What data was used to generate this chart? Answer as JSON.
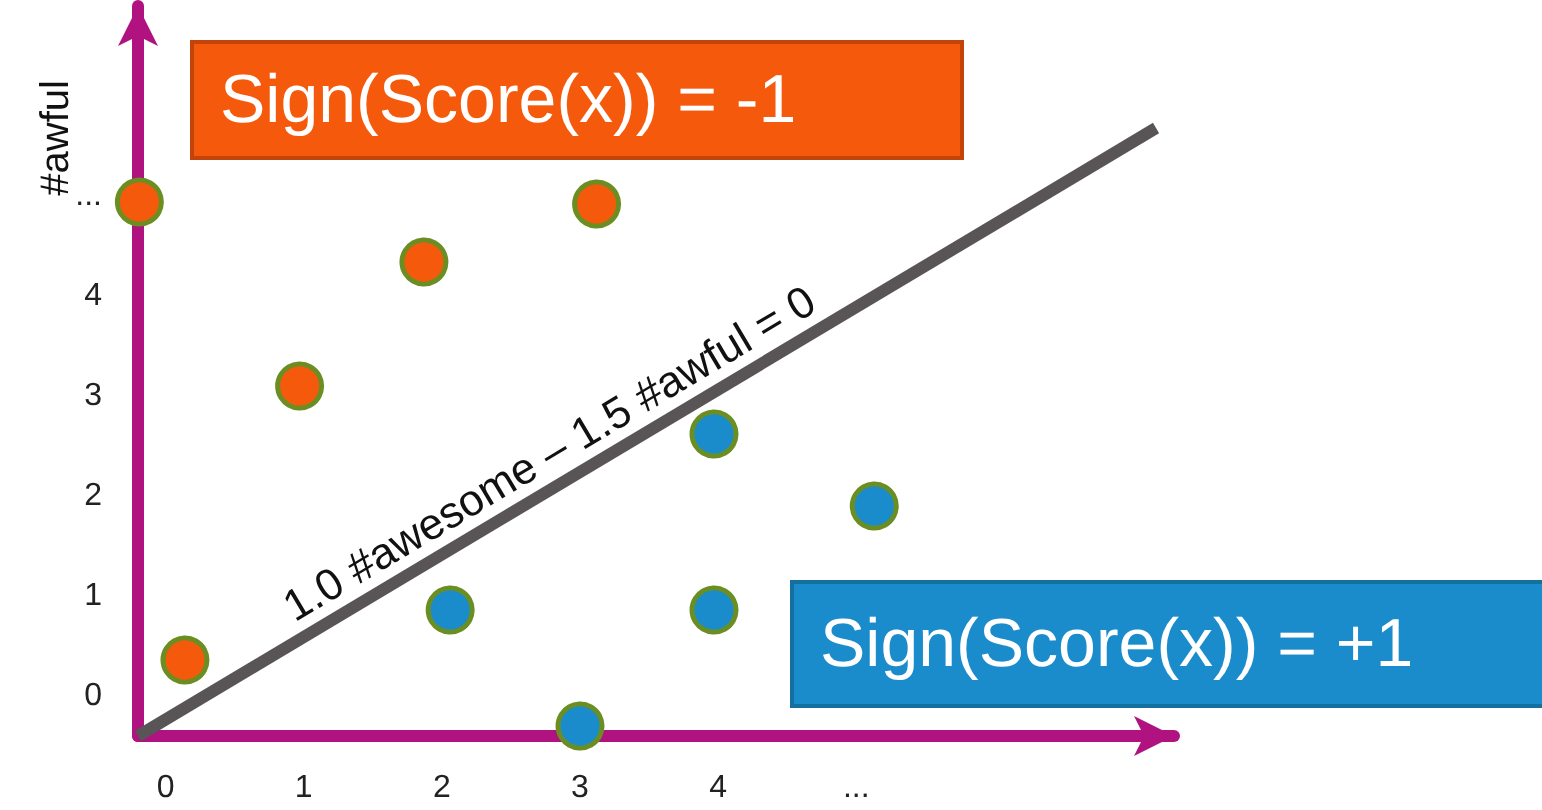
{
  "chart_data": {
    "type": "scatter",
    "ylabel": "#awful",
    "xlim": [
      -0.2,
      7.3
    ],
    "ylim": [
      -0.4,
      6.9
    ],
    "xticks": [
      0,
      1,
      2,
      3,
      4,
      {
        "value": 5,
        "label": "..."
      }
    ],
    "yticks": [
      0,
      1,
      2,
      3,
      4,
      {
        "value": 5,
        "label": "..."
      }
    ],
    "grid": false,
    "marker": "circle",
    "series": [
      {
        "color": "#f55a0c",
        "x": [
          -0.19,
          0.14,
          0.97,
          1.87,
          3.12
        ],
        "values": [
          4.94,
          0.36,
          3.1,
          4.34,
          4.92
        ]
      },
      {
        "color": "#1a8ccb",
        "x": [
          2.06,
          3.0,
          3.97,
          3.97,
          5.13
        ],
        "values": [
          0.86,
          -0.3,
          2.62,
          0.86,
          1.9
        ]
      },
      {
        "type": "line",
        "marker": "none",
        "color": "#595556",
        "x": [
          -0.2,
          7.17
        ],
        "values": [
          -0.4,
          5.68
        ]
      }
    ],
    "annotations": [
      "Sign(Score(x)) = -1",
      "Sign(Score(x)) = +1",
      "1.0 #awesome – 1.5 #awful = 0"
    ]
  }
}
